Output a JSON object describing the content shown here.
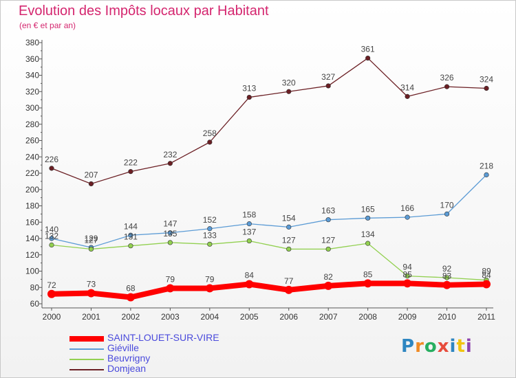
{
  "title": "Evolution des Impôts locaux par Habitant",
  "subtitle": "(en € et par an)",
  "logo": {
    "text": "Proxiti",
    "colors": [
      "#2e86c1",
      "#f08a24",
      "#27ae60",
      "#e74c3c",
      "#2e86c1",
      "#f1c40f",
      "#8e44ad"
    ]
  },
  "chart_data": {
    "type": "line",
    "x": [
      "2000",
      "2001",
      "2002",
      "2003",
      "2004",
      "2005",
      "2006",
      "2007",
      "2008",
      "2009",
      "2010",
      "2011"
    ],
    "ylim": [
      60,
      380
    ],
    "yticks": [
      60,
      80,
      100,
      120,
      140,
      160,
      180,
      200,
      220,
      240,
      260,
      280,
      300,
      320,
      340,
      360,
      380
    ],
    "grid": false,
    "legend_position": "bottom-left",
    "series": [
      {
        "name": "SAINT-LOUET-SUR-VIRE",
        "color": "#ff0000",
        "bold": true,
        "values": [
          72,
          73,
          68,
          79,
          79,
          84,
          77,
          82,
          85,
          85,
          83,
          84
        ]
      },
      {
        "name": "Giéville",
        "color": "#5b9bd5",
        "bold": false,
        "values": [
          140,
          129,
          144,
          147,
          152,
          158,
          154,
          163,
          165,
          166,
          170,
          218
        ]
      },
      {
        "name": "Beuvrigny",
        "color": "#92d050",
        "bold": false,
        "values": [
          132,
          127,
          131,
          135,
          133,
          137,
          127,
          127,
          134,
          94,
          92,
          89
        ]
      },
      {
        "name": "Domjean",
        "color": "#6b1f24",
        "bold": false,
        "values": [
          226,
          207,
          222,
          232,
          258,
          313,
          320,
          327,
          361,
          314,
          326,
          324
        ]
      }
    ]
  }
}
